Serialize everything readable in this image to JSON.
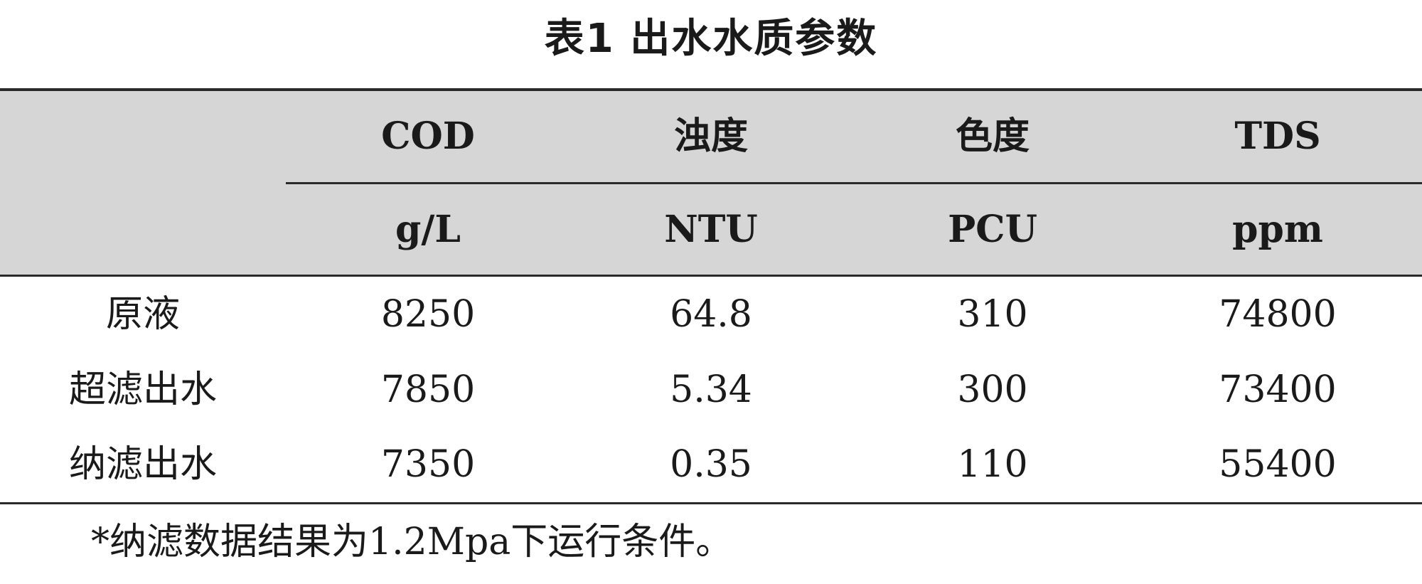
{
  "title": "表1  出水水质参数",
  "table": {
    "header": {
      "names": [
        "COD",
        "浊度",
        "色度",
        "TDS"
      ],
      "units": [
        "g/L",
        "NTU",
        "PCU",
        "ppm"
      ]
    },
    "rows": [
      {
        "label": "原液",
        "values": [
          "8250",
          "64.8",
          "310",
          "74800"
        ]
      },
      {
        "label": "超滤出水",
        "values": [
          "7850",
          "5.34",
          "300",
          "73400"
        ]
      },
      {
        "label": "纳滤出水",
        "values": [
          "7350",
          "0.35",
          "110",
          "55400"
        ]
      }
    ]
  },
  "footnote": "*纳滤数据结果为1.2Mpa下运行条件。"
}
